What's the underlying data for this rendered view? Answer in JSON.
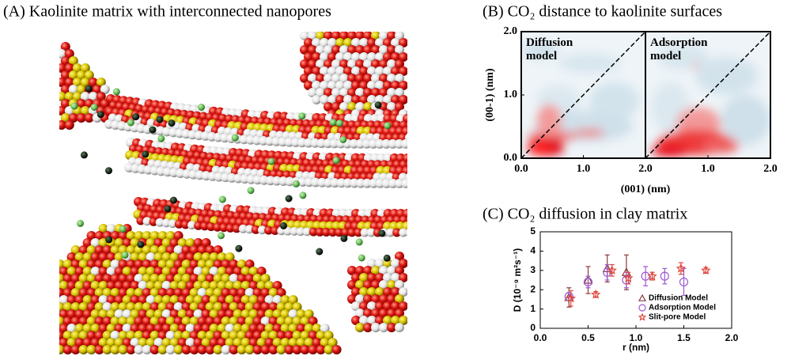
{
  "chart_data": [
    {
      "type": "image",
      "title": "(A) Kaolinite matrix with interconnected nanopores"
    },
    {
      "type": "density",
      "title": "(B) CO₂ distance to kaolinite surfaces",
      "xlabel": "(001) (nm)",
      "ylabel": "(00-1) (nm)",
      "ylim": [
        0,
        2
      ],
      "yticks": [
        {
          "value": 0,
          "label": "0.0"
        },
        {
          "value": 1,
          "label": "1.0"
        },
        {
          "value": 2,
          "label": "2.0"
        }
      ],
      "panels": [
        {
          "label": "Diffusion model",
          "xlim": [
            0,
            2
          ],
          "xticks": [
            {
              "value": 0,
              "label": "0.0"
            },
            {
              "value": 1,
              "label": "1.0"
            },
            {
              "value": 2,
              "label": "2.0"
            }
          ]
        },
        {
          "label": "Adsorption model",
          "xlim": [
            0,
            2
          ],
          "xticks": [
            {
              "value": 1,
              "label": "1.0"
            },
            {
              "value": 2,
              "label": "2.0"
            }
          ]
        }
      ]
    },
    {
      "type": "scatter",
      "title": "(C) CO₂ diffusion in clay matrix",
      "xlabel": "r (nm)",
      "ylabel": "D (10⁻⁹ m²s⁻¹)",
      "xlim": [
        0,
        2
      ],
      "xticks": [
        {
          "value": 0,
          "label": "0.0"
        },
        {
          "value": 0.5,
          "label": "0.5"
        },
        {
          "value": 1,
          "label": "1.0"
        },
        {
          "value": 1.5,
          "label": "1.5"
        },
        {
          "value": 2,
          "label": "2.0"
        }
      ],
      "ylim": [
        0,
        5
      ],
      "yticks": [
        0,
        1,
        2,
        3,
        4,
        5
      ],
      "legend": "lower right",
      "series": [
        {
          "name": "Diffusion Model",
          "marker": "triangle",
          "color": "#8b3a3a",
          "x": [
            0.3,
            0.5,
            0.7,
            0.9
          ],
          "values": [
            1.6,
            2.5,
            3.1,
            2.9
          ],
          "errors": [
            0.5,
            0.7,
            0.7,
            0.9
          ]
        },
        {
          "name": "Adsorption Model",
          "marker": "circle",
          "color": "#9b59d0",
          "x": [
            0.3,
            0.5,
            0.7,
            0.9,
            1.1,
            1.3,
            1.5
          ],
          "values": [
            1.65,
            2.4,
            2.9,
            2.5,
            2.7,
            2.7,
            2.4
          ],
          "errors": [
            0.2,
            0.3,
            0.4,
            0.4,
            0.5,
            0.4,
            0.7
          ]
        },
        {
          "name": "Slit-pore Model",
          "marker": "star",
          "color": "#e0453a",
          "x": [
            0.32,
            0.58,
            0.75,
            0.92,
            1.17,
            1.47,
            1.73
          ],
          "values": [
            1.55,
            1.75,
            3.0,
            2.6,
            2.7,
            3.1,
            3.0
          ],
          "errors": [
            0.4,
            0.15,
            0.3,
            0.3,
            0.2,
            0.3,
            0.15
          ]
        }
      ]
    }
  ]
}
